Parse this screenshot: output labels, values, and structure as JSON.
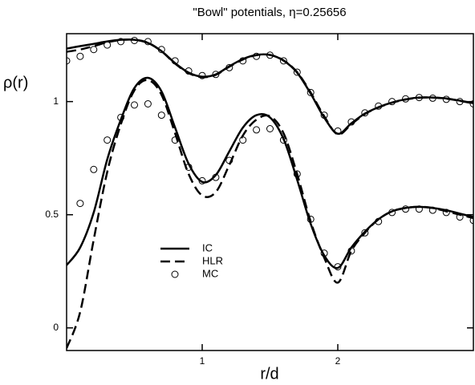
{
  "chart_data": {
    "type": "line",
    "title": "\"Bowl\" potentials, η=0.25656",
    "xlabel": "r/d",
    "ylabel": "ρ(r)",
    "xlim": [
      0,
      3
    ],
    "xticks": [
      1,
      2
    ],
    "ylim": [
      -0.1,
      1.3
    ],
    "yticks": [
      0,
      0.5,
      1
    ],
    "x": [
      0,
      0.1,
      0.2,
      0.3,
      0.4,
      0.5,
      0.6,
      0.7,
      0.8,
      0.9,
      1.0,
      1.1,
      1.2,
      1.3,
      1.4,
      1.5,
      1.6,
      1.7,
      1.8,
      1.9,
      2.0,
      2.1,
      2.2,
      2.3,
      2.4,
      2.5,
      2.6,
      2.7,
      2.8,
      2.9,
      3.0
    ],
    "series": [
      {
        "name": "IC",
        "style": "solid",
        "color": "#000000",
        "values": [
          0.277,
          0.355,
          0.51,
          0.745,
          0.92,
          1.06,
          1.105,
          1.045,
          0.885,
          0.725,
          0.645,
          0.675,
          0.78,
          0.885,
          0.94,
          0.93,
          0.835,
          0.655,
          0.46,
          0.32,
          0.265,
          0.355,
          0.425,
          0.48,
          0.515,
          0.53,
          0.535,
          0.53,
          0.52,
          0.505,
          0.49
        ]
      },
      {
        "name": "HLR",
        "style": "dashed",
        "color": "#000000",
        "values": [
          -0.09,
          0.07,
          0.39,
          0.69,
          0.9,
          1.05,
          1.095,
          1.03,
          0.86,
          0.68,
          0.585,
          0.6,
          0.72,
          0.85,
          0.92,
          0.935,
          0.86,
          0.68,
          0.47,
          0.31,
          0.2,
          0.34,
          0.42,
          0.48,
          0.515,
          0.53,
          0.535,
          0.53,
          0.515,
          0.5,
          0.485
        ]
      },
      {
        "name": "MC",
        "style": "markers",
        "color": "#000000",
        "values": [
          null,
          0.55,
          0.7,
          0.83,
          0.93,
          0.985,
          0.99,
          0.94,
          0.83,
          0.71,
          0.65,
          0.665,
          0.74,
          0.83,
          0.875,
          0.88,
          0.83,
          0.68,
          0.48,
          0.33,
          0.27,
          0.34,
          0.42,
          0.47,
          0.51,
          0.525,
          0.525,
          0.52,
          0.51,
          0.49,
          0.475
        ]
      },
      {
        "style": "solid",
        "color": "#000000",
        "values": [
          1.234,
          1.245,
          1.255,
          1.266,
          1.273,
          1.273,
          1.259,
          1.223,
          1.17,
          1.128,
          1.11,
          1.12,
          1.156,
          1.188,
          1.206,
          1.206,
          1.181,
          1.128,
          1.035,
          0.929,
          0.858,
          0.904,
          0.947,
          0.975,
          0.996,
          1.01,
          1.018,
          1.018,
          1.014,
          1.004,
          0.993
        ]
      },
      {
        "style": "dashed",
        "color": "#000000",
        "values": [
          1.22,
          1.23,
          1.245,
          1.262,
          1.272,
          1.273,
          1.26,
          1.222,
          1.168,
          1.126,
          1.108,
          1.118,
          1.154,
          1.186,
          1.205,
          1.206,
          1.182,
          1.13,
          1.04,
          0.935,
          0.855,
          0.9,
          0.945,
          0.974,
          0.995,
          1.009,
          1.017,
          1.018,
          1.013,
          1.003,
          0.992
        ]
      },
      {
        "style": "markers",
        "color": "#000000",
        "values": [
          1.18,
          1.2,
          1.23,
          1.25,
          1.265,
          1.27,
          1.265,
          1.23,
          1.18,
          1.135,
          1.115,
          1.12,
          1.15,
          1.18,
          1.2,
          1.205,
          1.18,
          1.13,
          1.04,
          0.94,
          0.87,
          0.91,
          0.95,
          0.98,
          1.0,
          1.012,
          1.018,
          1.015,
          1.01,
          1.0,
          0.99
        ]
      }
    ]
  }
}
